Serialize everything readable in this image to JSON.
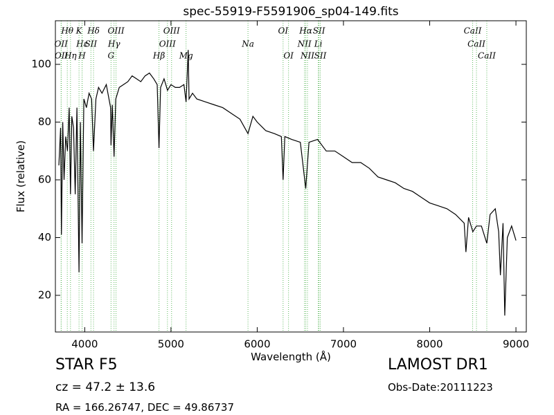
{
  "chart_data": {
    "type": "line",
    "title": "spec-55919-F5591906_sp04-149.fits",
    "x_label": "Wavelength (Å)",
    "y_label": "Flux (relative)",
    "xlim": [
      3660,
      9120
    ],
    "ylim": [
      7.3,
      115.1
    ],
    "xticks": [
      4000,
      5000,
      6000,
      7000,
      8000,
      9000
    ],
    "yticks": [
      20,
      40,
      60,
      80,
      100
    ],
    "series": [
      {
        "color": "#000000",
        "x": [
          3700,
          3720,
          3730,
          3745,
          3760,
          3780,
          3800,
          3820,
          3835,
          3850,
          3870,
          3890,
          3910,
          3934,
          3950,
          3969,
          3990,
          4020,
          4050,
          4080,
          4102,
          4130,
          4160,
          4200,
          4250,
          4300,
          4305,
          4320,
          4340,
          4360,
          4400,
          4450,
          4500,
          4550,
          4600,
          4650,
          4700,
          4750,
          4800,
          4840,
          4861,
          4880,
          4920,
          4960,
          5000,
          5050,
          5100,
          5150,
          5175,
          5200,
          5210,
          5250,
          5300,
          5400,
          5500,
          5600,
          5700,
          5800,
          5893,
          5950,
          6000,
          6100,
          6200,
          6280,
          6300,
          6320,
          6400,
          6500,
          6563,
          6600,
          6700,
          6800,
          6900,
          7000,
          7100,
          7200,
          7300,
          7400,
          7500,
          7600,
          7700,
          7800,
          7900,
          8000,
          8100,
          8200,
          8300,
          8400,
          8420,
          8450,
          8500,
          8542,
          8600,
          8662,
          8700,
          8760,
          8800,
          8820,
          8850,
          8870,
          8900,
          8950,
          9000
        ],
        "values": [
          65,
          78,
          41,
          80,
          60,
          75,
          70,
          85,
          55,
          82,
          78,
          55,
          85,
          28,
          80,
          38,
          88,
          85,
          90,
          88,
          70,
          88,
          92,
          90,
          93,
          85,
          72,
          86,
          68,
          88,
          92,
          93,
          94,
          96,
          95,
          94,
          96,
          97,
          95,
          93,
          71,
          92,
          95,
          91,
          93,
          92,
          92,
          93,
          87,
          105,
          88,
          90,
          88,
          87,
          86,
          85,
          83,
          81,
          76,
          82,
          80,
          77,
          76,
          75,
          60,
          75,
          74,
          73,
          57,
          73,
          74,
          70,
          70,
          68,
          66,
          66,
          64,
          61,
          60,
          59,
          57,
          56,
          54,
          52,
          51,
          50,
          48,
          45,
          35,
          47,
          42,
          44,
          44,
          38,
          48,
          50,
          42,
          27,
          45,
          13,
          40,
          44,
          39
        ]
      }
    ],
    "line_color": "#5cb85c",
    "lines": [
      {
        "label": "OII",
        "x": 3726
      },
      {
        "label": "OII",
        "x": 3729
      },
      {
        "label": "Hθ",
        "x": 3798
      },
      {
        "label": "Hη",
        "x": 3835
      },
      {
        "label": "K",
        "x": 3934
      },
      {
        "label": "Hε",
        "x": 3970
      },
      {
        "label": "H",
        "x": 3969
      },
      {
        "label": "SII",
        "x": 4072
      },
      {
        "label": "Hδ",
        "x": 4102
      },
      {
        "label": "G",
        "x": 4305
      },
      {
        "label": "Hγ",
        "x": 4340
      },
      {
        "label": "OIII",
        "x": 4363
      },
      {
        "label": "Hβ",
        "x": 4861
      },
      {
        "label": "OIII",
        "x": 4959
      },
      {
        "label": "OIII",
        "x": 5007
      },
      {
        "label": "Mg",
        "x": 5175
      },
      {
        "label": "Na",
        "x": 5893
      },
      {
        "label": "OI",
        "x": 6300
      },
      {
        "label": "OI",
        "x": 6363
      },
      {
        "label": "NII",
        "x": 6548
      },
      {
        "label": "Hα",
        "x": 6563
      },
      {
        "label": "NII",
        "x": 6583
      },
      {
        "label": "Li",
        "x": 6708
      },
      {
        "label": "SII",
        "x": 6716
      },
      {
        "label": "SII",
        "x": 6731
      },
      {
        "label": "CaII",
        "x": 8498
      },
      {
        "label": "CaII",
        "x": 8542
      },
      {
        "label": "CaII",
        "x": 8662
      }
    ],
    "info": {
      "object": "STAR   F5",
      "redshift": "cz = 47.2  ± 13.6",
      "coords": "RA = 166.26747, DEC = 49.86737",
      "survey": "LAMOST DR1",
      "date": "Obs-Date:20111223"
    }
  }
}
